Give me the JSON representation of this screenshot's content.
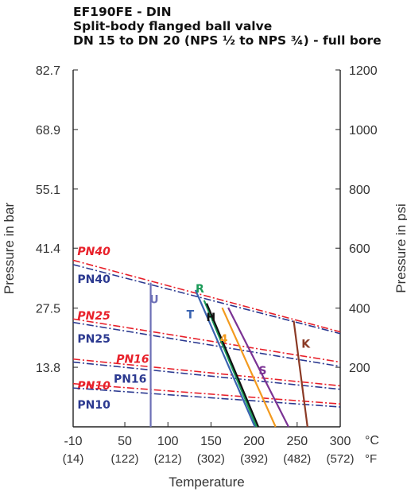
{
  "chart_data": {
    "type": "line",
    "title": [
      "EF190FE - DIN",
      "Split-body flanged ball valve",
      "DN 15 to DN 20 (NPS ½ to NPS ¾) - full bore"
    ],
    "xlabel": "Temperature",
    "ylabel_left": "Pressure in bar",
    "ylabel_right": "Pressure in psi",
    "xlim": [
      -10,
      300
    ],
    "ylim": [
      0,
      82.7
    ],
    "x_ticks_c": [
      "-10",
      "50",
      "100",
      "150",
      "200",
      "250",
      "300"
    ],
    "x_ticks_f": [
      "(14)",
      "(122)",
      "(212)",
      "(302)",
      "(392)",
      "(482)",
      "(572)"
    ],
    "x_unit_c": "°C",
    "x_unit_f": "°F",
    "y_ticks_bar": [
      "13.8",
      "27.5",
      "41.4",
      "55.1",
      "68.9",
      "82.7"
    ],
    "y_ticks_psi": [
      "200",
      "400",
      "600",
      "800",
      "1000",
      "1200"
    ],
    "pn_labels": {
      "red": [
        "PN40",
        "PN25",
        "PN16",
        "PN10"
      ],
      "blue": [
        "PN40",
        "PN25",
        "PN16",
        "PN10"
      ]
    },
    "pn_series": [
      {
        "label": "PN40",
        "color": "#e8202a",
        "x": [
          -10,
          300
        ],
        "y": [
          38.6,
          22.0
        ],
        "label_x": -5,
        "label_y": 39.8,
        "italic": true
      },
      {
        "label": "PN40",
        "color": "#2b3990",
        "x": [
          -10,
          300
        ],
        "y": [
          37.6,
          21.6
        ],
        "label_x": -5,
        "label_y": 33.3,
        "italic": false
      },
      {
        "label": "PN25",
        "color": "#e8202a",
        "x": [
          -10,
          300
        ],
        "y": [
          25.0,
          15.0
        ],
        "label_x": -5,
        "label_y": 24.9,
        "italic": true
      },
      {
        "label": "PN25",
        "color": "#2b3990",
        "x": [
          -10,
          300
        ],
        "y": [
          24.2,
          14.0
        ],
        "label_x": -5,
        "label_y": 19.5,
        "italic": false
      },
      {
        "label": "PN16",
        "color": "#e8202a",
        "x": [
          -10,
          300
        ],
        "y": [
          15.7,
          9.5
        ],
        "label_x": 40,
        "label_y": 14.8,
        "italic": true
      },
      {
        "label": "PN16",
        "color": "#2b3990",
        "x": [
          -10,
          300
        ],
        "y": [
          15.0,
          8.7
        ],
        "label_x": 37,
        "label_y": 10.2,
        "italic": false
      },
      {
        "label": "PN10",
        "color": "#e8202a",
        "x": [
          -10,
          300
        ],
        "y": [
          10.0,
          5.3
        ],
        "label_x": -5,
        "label_y": 8.7,
        "italic": true
      },
      {
        "label": "PN10",
        "color": "#2b3990",
        "x": [
          -10,
          300
        ],
        "y": [
          9.0,
          4.6
        ],
        "label_x": -5,
        "label_y": 4.2,
        "italic": false
      }
    ],
    "seat_series": [
      {
        "label": "U",
        "color": "#6c6fb6",
        "x": [
          80,
          80
        ],
        "y": [
          33.4,
          0.0
        ],
        "label_x": 84,
        "label_y": 28.6
      },
      {
        "label": "T",
        "color": "#3a63b0",
        "x": [
          132,
          201
        ],
        "y": [
          31.7,
          0.0
        ],
        "label_x": 126,
        "label_y": 25.1
      },
      {
        "label": "R",
        "color": "#1a9a57",
        "x": [
          142,
          203
        ],
        "y": [
          29.3,
          0.0
        ],
        "label_x": 137,
        "label_y": 31.1
      },
      {
        "label": "H",
        "color": "#111111",
        "x": [
          145,
          205
        ],
        "y": [
          28.6,
          0.0
        ],
        "label_x": 150,
        "label_y": 24.5
      },
      {
        "label": "4",
        "color": "#f39a1e",
        "x": [
          163,
          225
        ],
        "y": [
          27.6,
          0.0
        ],
        "label_x": 165,
        "label_y": 19.5
      },
      {
        "label": "S",
        "color": "#7b3294",
        "x": [
          170,
          240
        ],
        "y": [
          27.6,
          0.0
        ],
        "label_x": 210,
        "label_y": 12.2
      },
      {
        "label": "K",
        "color": "#8b3a25",
        "x": [
          246,
          262
        ],
        "y": [
          24.6,
          0.0
        ],
        "label_x": 260,
        "label_y": 18.3
      }
    ],
    "grid": false
  }
}
